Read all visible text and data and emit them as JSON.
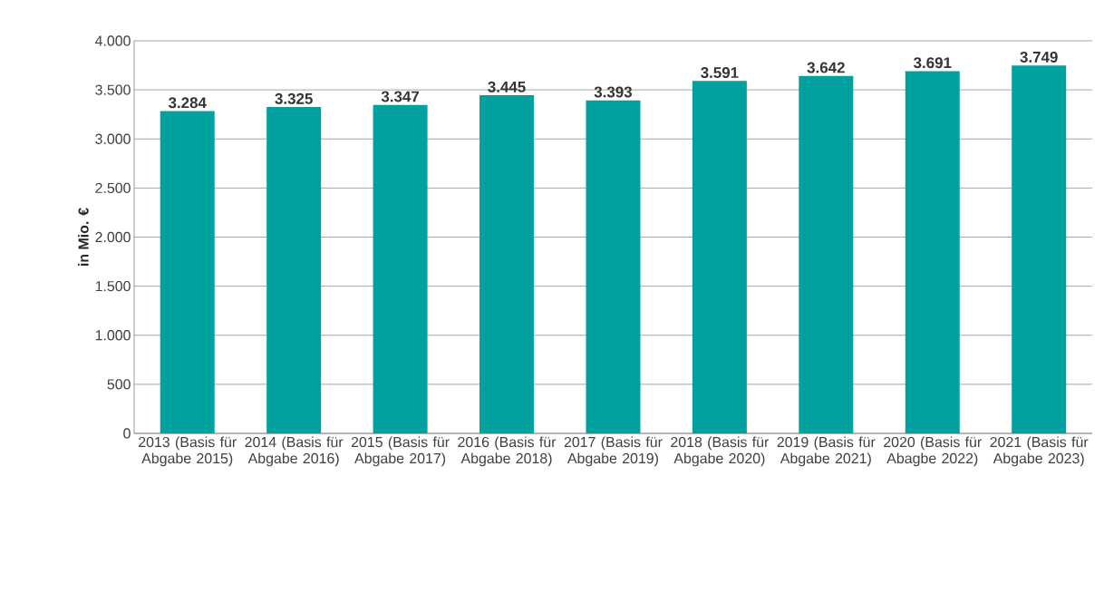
{
  "chart_data": {
    "type": "bar",
    "ylabel": "in Mio. €",
    "categories": [
      "2013 (Basis für Abgabe 2015)",
      "2014 (Basis für Abgabe 2016)",
      "2015 (Basis für Abgabe 2017)",
      "2016 (Basis für Abgabe 2018)",
      "2017 (Basis für Abgabe 2019)",
      "2018 (Basis für Abgabe 2020)",
      "2019 (Basis für Abgabe 2021)",
      "2020 (Basis für Abagbe 2022)",
      "2021 (Basis für Abgabe 2023)"
    ],
    "values": [
      3284,
      3325,
      3347,
      3445,
      3393,
      3591,
      3642,
      3691,
      3749
    ],
    "value_labels": [
      "3.284",
      "3.325",
      "3.347",
      "3.445",
      "3.393",
      "3.591",
      "3.642",
      "3.691",
      "3.749"
    ],
    "color": "#00a19f",
    "ylim": [
      0,
      4000
    ],
    "yticks": [
      0,
      500,
      {
        "value": 1000,
        "label": "1.000"
      },
      {
        "value": 1500,
        "label": "1.500"
      },
      {
        "value": 2000,
        "label": "2.000"
      },
      {
        "value": 2500,
        "label": "2.500"
      },
      {
        "value": 3000,
        "label": "3.000"
      },
      {
        "value": 3500,
        "label": "3.500"
      },
      {
        "value": 4000,
        "label": "4.000"
      }
    ],
    "grid": "y"
  }
}
